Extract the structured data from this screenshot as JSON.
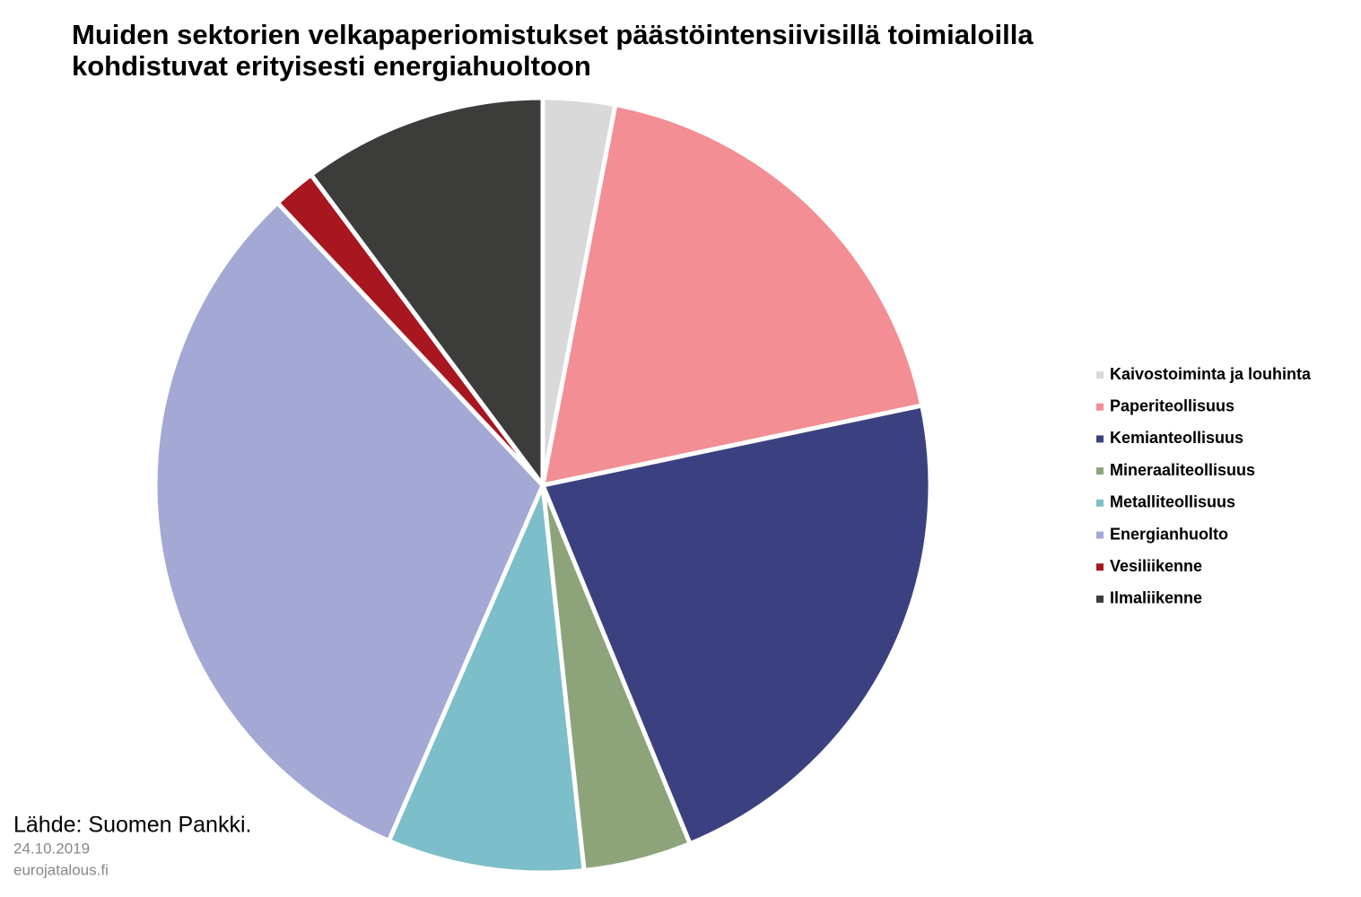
{
  "chart_data": {
    "type": "pie",
    "title": [
      "Muiden sektorien velkapaperiomistukset päästöintensiivisillä toimialoilla",
      "kohdistuvat erityisesti energiahuoltoon"
    ],
    "categories": [
      "Kaivostoiminta ja louhinta",
      "Paperiteollisuus",
      "Kemianteollisuus",
      "Mineraaliteollisuus",
      "Metalliteollisuus",
      "Energianhuolto",
      "Vesiliikenne",
      "Ilmaliikenne"
    ],
    "values": [
      3.0,
      18.7,
      22.1,
      4.5,
      8.2,
      31.5,
      1.8,
      10.2
    ],
    "colors": [
      "#d9d9d9",
      "#f28e94",
      "#3b4180",
      "#8da47b",
      "#7cbec9",
      "#a4a8d4",
      "#a8161f",
      "#3c3c3b"
    ],
    "source": "Lähde: Suomen Pankki.",
    "date": "24.10.2019",
    "site": "eurojatalous.fi"
  }
}
